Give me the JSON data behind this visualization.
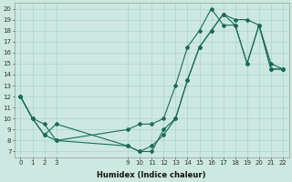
{
  "xlabel": "Humidex (Indice chaleur)",
  "bg_color": "#cce8e0",
  "grid_color": "#aad4cc",
  "line_color": "#1a6b5a",
  "xlim": [
    -0.5,
    22.5
  ],
  "ylim": [
    6.5,
    20.5
  ],
  "xticks": [
    0,
    1,
    2,
    3,
    9,
    10,
    11,
    12,
    13,
    14,
    15,
    16,
    17,
    18,
    19,
    20,
    21,
    22
  ],
  "yticks": [
    7,
    8,
    9,
    10,
    11,
    12,
    13,
    14,
    15,
    16,
    17,
    18,
    19,
    20
  ],
  "line1_x": [
    0,
    1,
    2,
    3,
    9,
    10,
    11,
    12,
    13,
    14,
    15,
    16,
    17,
    18,
    19,
    20,
    21,
    22
  ],
  "line1_y": [
    12,
    10,
    8.5,
    9.5,
    7.5,
    7.0,
    7.0,
    9.0,
    10.0,
    13.5,
    16.5,
    18.0,
    19.5,
    19.0,
    19.0,
    18.5,
    15.0,
    14.5
  ],
  "line2_x": [
    0,
    1,
    2,
    3,
    9,
    10,
    11,
    12,
    13,
    14,
    15,
    16,
    17,
    18,
    19,
    20,
    21,
    22
  ],
  "line2_y": [
    12,
    10,
    8.5,
    8.0,
    9.0,
    9.5,
    9.5,
    10.0,
    13.0,
    16.5,
    18.0,
    20.0,
    18.5,
    18.5,
    15.0,
    18.5,
    14.5,
    14.5
  ],
  "line3_x": [
    0,
    1,
    2,
    3,
    9,
    10,
    11,
    12,
    13,
    14,
    15,
    16,
    17,
    18,
    19,
    20,
    21,
    22
  ],
  "line3_y": [
    12,
    10,
    9.5,
    8.0,
    7.5,
    7.0,
    7.5,
    8.5,
    10.0,
    13.5,
    16.5,
    18.0,
    19.5,
    18.5,
    15.0,
    18.5,
    14.5,
    14.5
  ]
}
